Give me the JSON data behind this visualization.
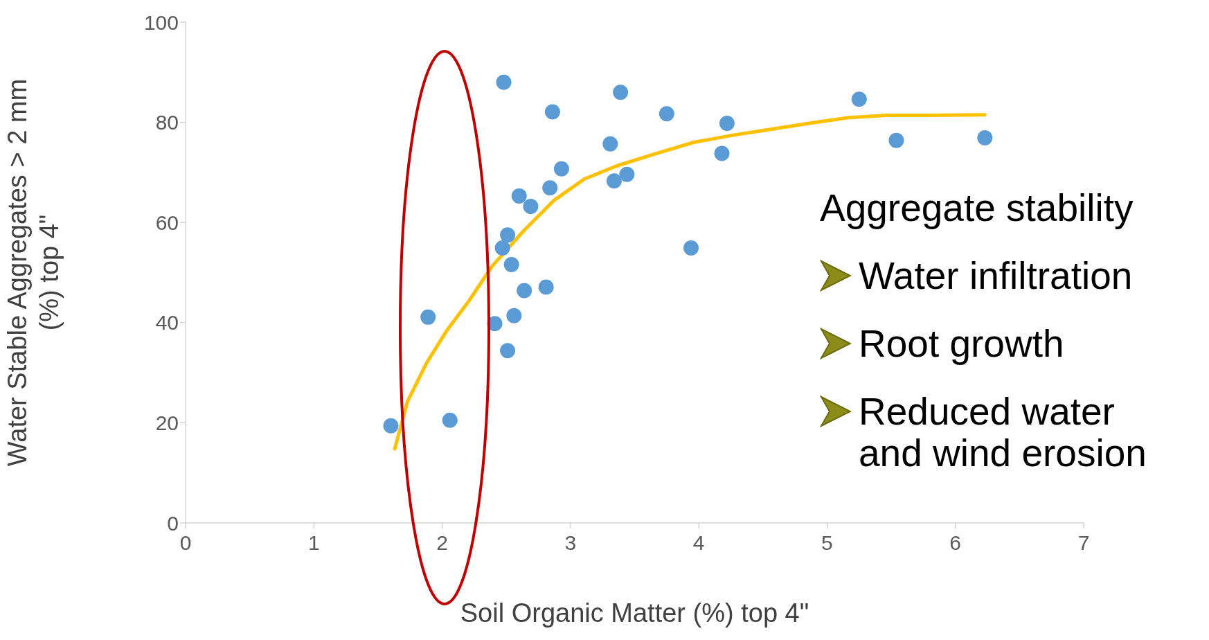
{
  "chart_data": {
    "type": "scatter",
    "xlabel": "Soil Organic Matter (%) top 4\"",
    "ylabel": "Water Stable Aggregates > 2 mm\n(%) top 4\"",
    "xlim": [
      0,
      7
    ],
    "xticks": [
      0,
      1,
      2,
      3,
      4,
      5,
      6,
      7
    ],
    "ylim": [
      0,
      100
    ],
    "yticks": [
      0,
      20,
      40,
      60,
      80,
      100
    ],
    "marker": "circle",
    "series": [
      {
        "color": "#5b9bd5",
        "x": [
          1.6,
          1.89,
          2.06,
          2.41,
          2.48,
          2.47,
          2.51,
          2.51,
          2.54,
          2.56,
          2.6,
          2.64,
          2.69,
          2.81,
          2.84,
          2.86,
          2.93,
          3.31,
          3.34,
          3.39,
          3.44,
          3.75,
          3.94,
          4.18,
          4.22,
          5.25,
          5.54,
          6.23
        ],
        "values": [
          19.4,
          41.1,
          20.5,
          39.8,
          88,
          54.9,
          57.5,
          34.4,
          51.6,
          41.4,
          65.3,
          46.4,
          63.2,
          47.1,
          66.9,
          82.1,
          70.7,
          75.7,
          68.3,
          86,
          69.6,
          81.7,
          54.9,
          73.8,
          79.8,
          84.6,
          76.4,
          76.9
        ]
      },
      {
        "type": "line",
        "marker": "none",
        "color": "#ffc000",
        "x": [
          1.63,
          1.73,
          1.88,
          2.03,
          2.21,
          2.39,
          2.63,
          2.87,
          3.11,
          3.36,
          3.66,
          3.96,
          4.26,
          4.56,
          4.86,
          5.16,
          5.46,
          5.77,
          6.23
        ],
        "values": [
          14.8,
          24.3,
          32,
          38.2,
          44.4,
          51.3,
          58.2,
          64.4,
          68.7,
          71.3,
          73.7,
          76,
          77.4,
          78.6,
          79.8,
          80.9,
          81.4,
          81.4,
          81.5
        ]
      }
    ],
    "annotations": [
      "Aggregate stability",
      "Water infiltration",
      "Root growth",
      "Reduced water\nand wind erosion"
    ]
  }
}
